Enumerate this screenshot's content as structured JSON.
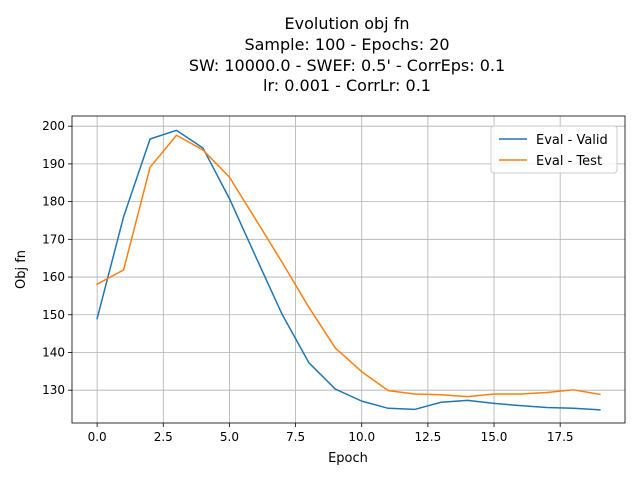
{
  "chart_data": {
    "type": "line",
    "title_lines": [
      "Evolution obj fn",
      "Sample: 100 - Epochs: 20",
      "SW: 10000.0 - SWEF: 0.5' - CorrEps: 0.1",
      "lr: 0.001 - CorrLr: 0.1"
    ],
    "xlabel": "Epoch",
    "ylabel": "Obj fn",
    "xlim": [
      -0.95,
      19.95
    ],
    "ylim": [
      121.3,
      202.7
    ],
    "xticks": [
      0.0,
      2.5,
      5.0,
      7.5,
      10.0,
      12.5,
      15.0,
      17.5
    ],
    "xtick_labels": [
      "0.0",
      "2.5",
      "5.0",
      "7.5",
      "10.0",
      "12.5",
      "15.0",
      "17.5"
    ],
    "yticks": [
      130,
      140,
      150,
      160,
      170,
      180,
      190,
      200
    ],
    "ytick_labels": [
      "130",
      "140",
      "150",
      "160",
      "170",
      "180",
      "190",
      "200"
    ],
    "grid": true,
    "legend_position": "top-right",
    "x": [
      0,
      1,
      2,
      3,
      4,
      5,
      6,
      7,
      8,
      9,
      10,
      11,
      12,
      13,
      14,
      15,
      16,
      17,
      18,
      19
    ],
    "series": [
      {
        "name": "Eval - Valid",
        "color": "#1f77b4",
        "values": [
          149.0,
          176.0,
          196.6,
          198.9,
          194.2,
          180.8,
          165.3,
          150.0,
          137.3,
          130.3,
          127.1,
          125.2,
          124.9,
          126.8,
          127.3,
          126.5,
          125.9,
          125.4,
          125.2,
          124.8
        ]
      },
      {
        "name": "Eval - Test",
        "color": "#ff7f0e",
        "values": [
          158.1,
          161.9,
          189.1,
          197.6,
          193.7,
          186.5,
          175.2,
          163.8,
          152.0,
          141.2,
          134.9,
          129.9,
          129.0,
          128.8,
          128.3,
          129.0,
          129.0,
          129.4,
          130.1,
          128.9
        ]
      }
    ]
  }
}
